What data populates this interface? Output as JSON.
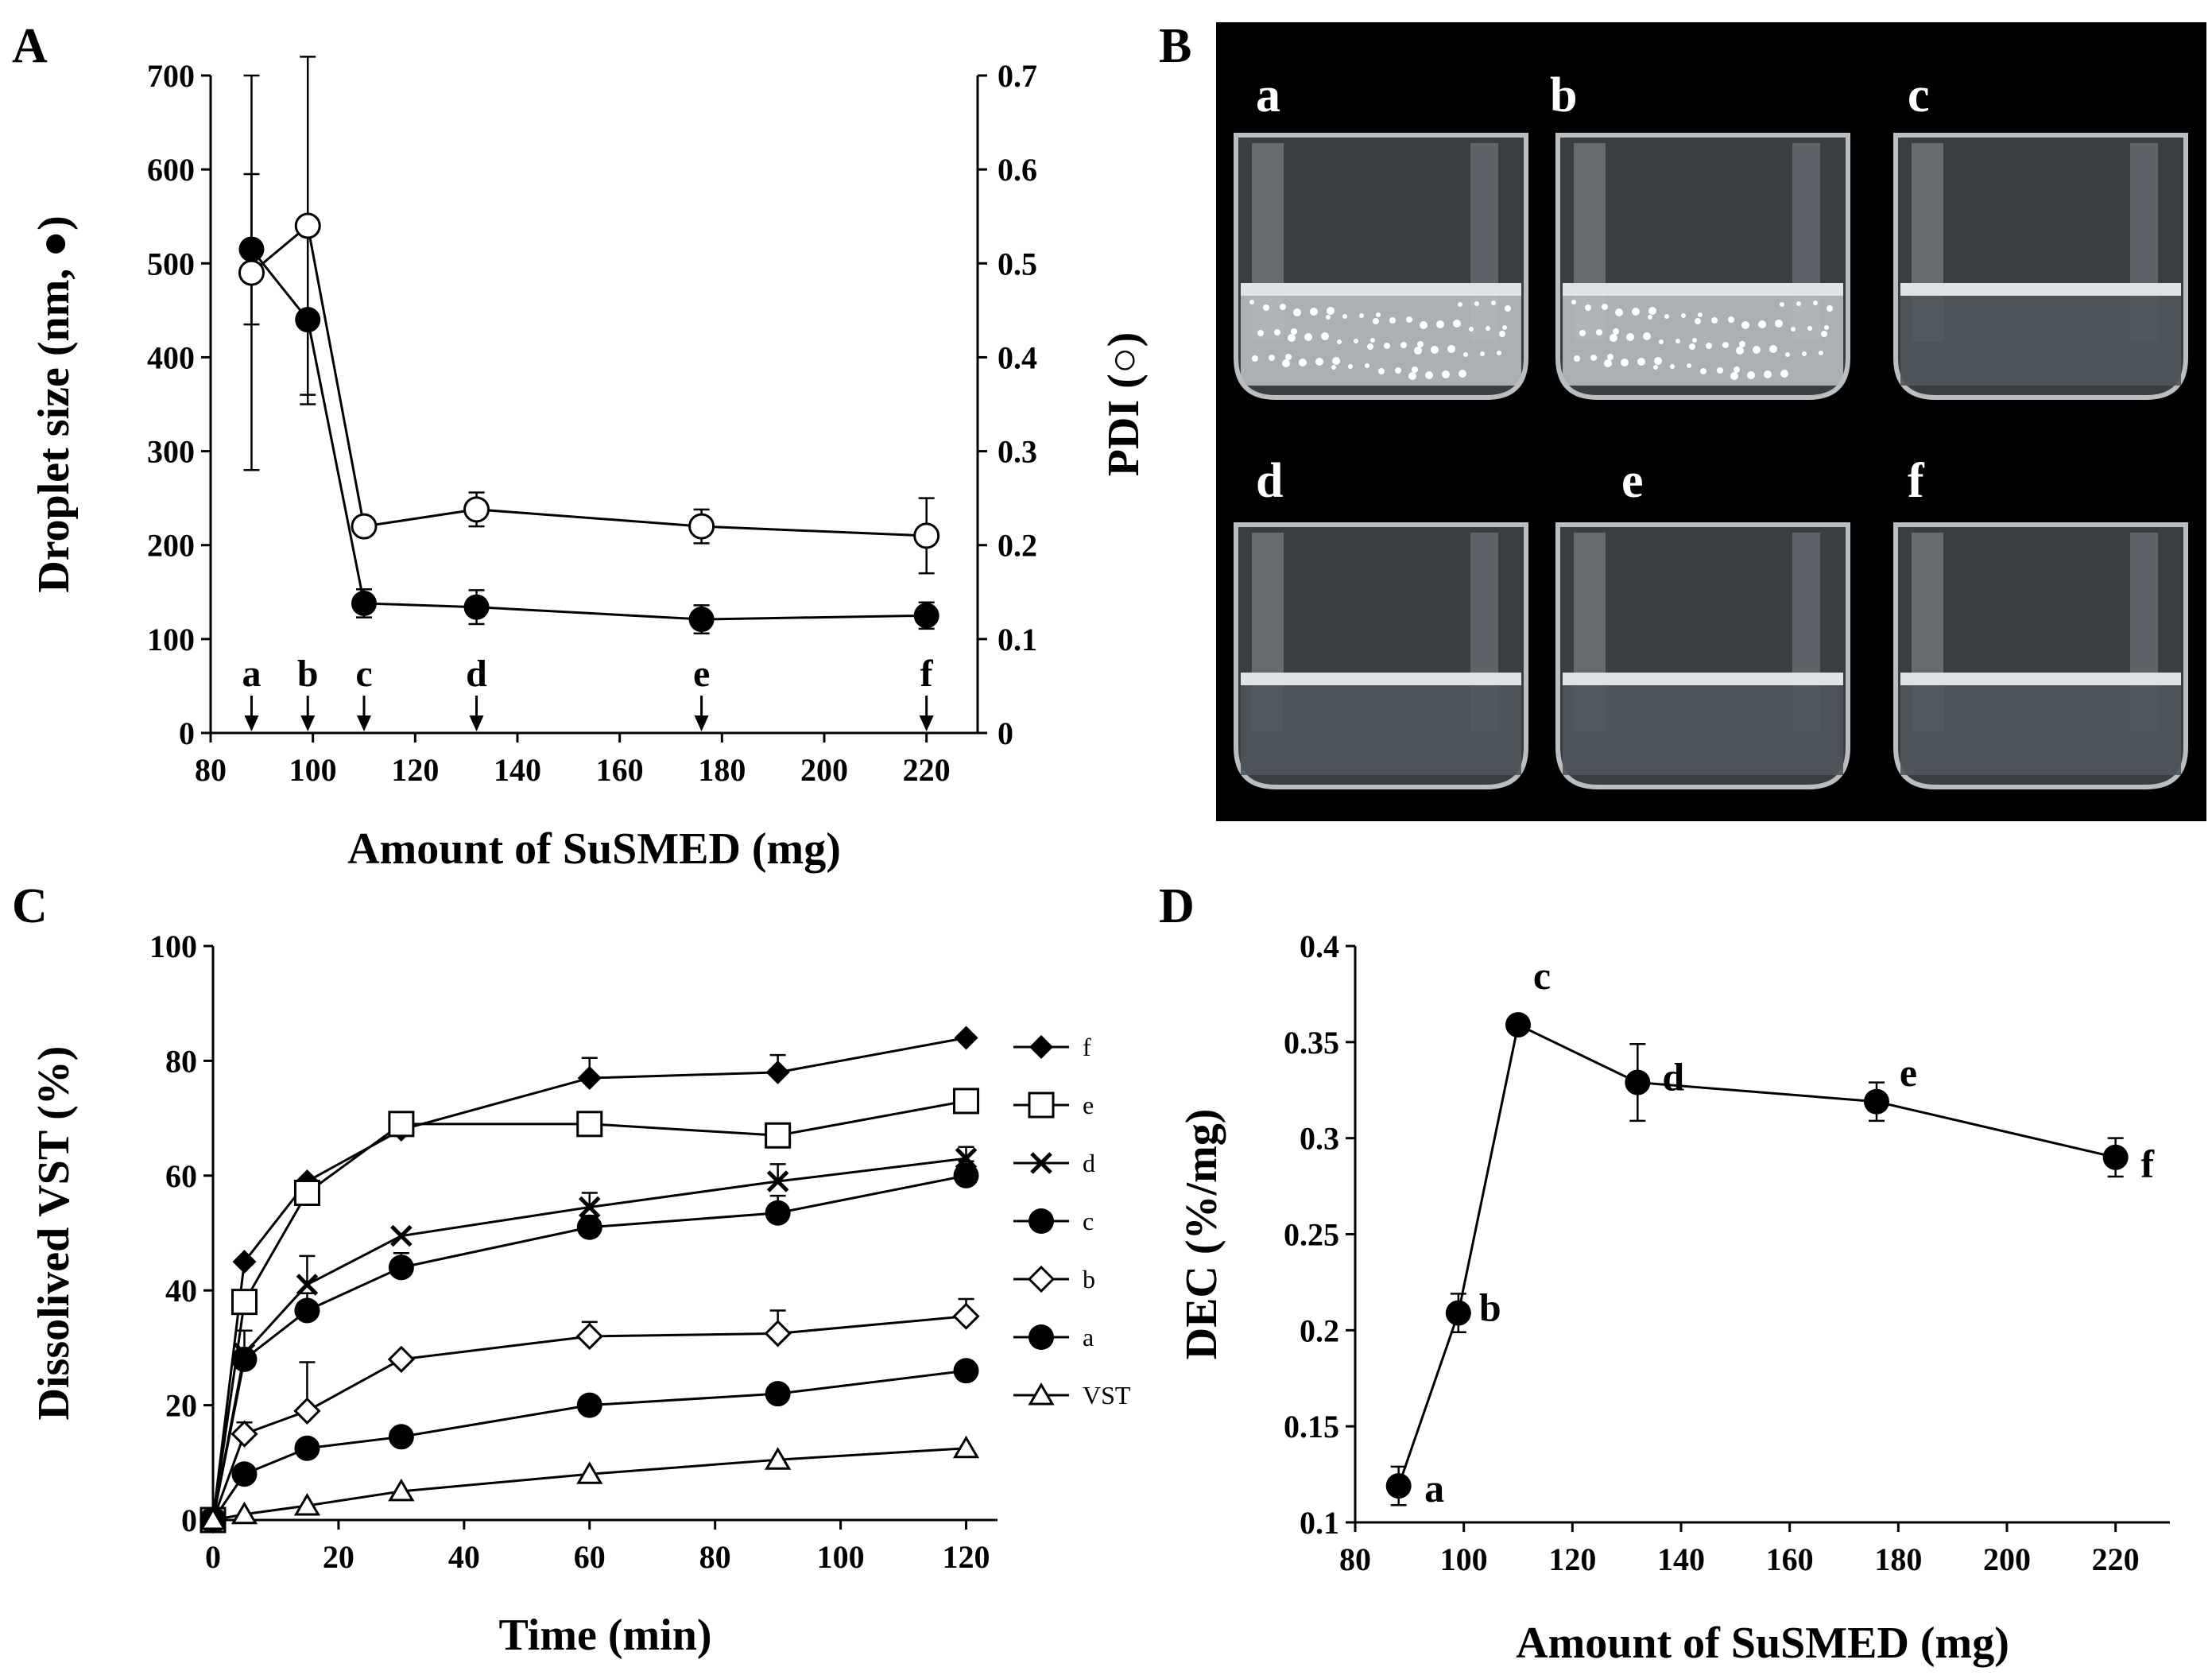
{
  "chart_data": [
    {
      "panel": "A",
      "type": "line",
      "xlabel": "Amount of SuSMED (mg)",
      "ylabel": "Droplet size (nm, ●)",
      "y2label": "PDI (○)",
      "xlim": [
        80,
        230
      ],
      "ylim": [
        0,
        700
      ],
      "y2lim": [
        0,
        0.7
      ],
      "xticks": [
        "80",
        "100",
        "120",
        "140",
        "160",
        "180",
        "200",
        "220"
      ],
      "yticks": [
        "0",
        "100",
        "200",
        "300",
        "400",
        "500",
        "600",
        "700"
      ],
      "y2ticks": [
        "0",
        "0.1",
        "0.2",
        "0.3",
        "0.4",
        "0.5",
        "0.6",
        "0.7"
      ],
      "series": [
        {
          "name": "Droplet size",
          "marker": "filled-circle",
          "axis": "left",
          "x": [
            88,
            99,
            110,
            132,
            176,
            220
          ],
          "values": [
            515,
            440,
            138,
            134,
            121,
            125
          ],
          "errors": [
            80,
            90,
            15,
            18,
            15,
            14
          ]
        },
        {
          "name": "PDI",
          "marker": "open-circle",
          "axis": "right",
          "x": [
            88,
            99,
            110,
            132,
            176,
            220
          ],
          "values": [
            0.49,
            0.54,
            0.22,
            0.238,
            0.22,
            0.21
          ],
          "errors": [
            0.21,
            0.18,
            0.005,
            0.018,
            0.018,
            0.04
          ]
        }
      ],
      "annotations": [
        {
          "label": "a",
          "x": 88
        },
        {
          "label": "b",
          "x": 99
        },
        {
          "label": "c",
          "x": 110
        },
        {
          "label": "d",
          "x": 132
        },
        {
          "label": "e",
          "x": 176
        },
        {
          "label": "f",
          "x": 220
        }
      ]
    },
    {
      "panel": "C",
      "type": "line",
      "xlabel": "Time (min)",
      "ylabel": "Dissolived VST (%)",
      "xlim": [
        0,
        125
      ],
      "ylim": [
        0,
        100
      ],
      "xticks": [
        "0",
        "20",
        "40",
        "60",
        "80",
        "100",
        "120"
      ],
      "yticks": [
        "0",
        "20",
        "40",
        "60",
        "80",
        "100"
      ],
      "x": [
        0,
        5,
        15,
        30,
        60,
        90,
        120
      ],
      "series": [
        {
          "name": "f",
          "marker": "filled-diamond",
          "values": [
            0,
            45,
            59,
            68,
            77,
            78,
            84
          ],
          "errors": [
            0,
            0,
            0,
            0,
            3.5,
            3,
            0
          ]
        },
        {
          "name": "e",
          "marker": "open-square",
          "values": [
            0,
            38,
            57,
            69,
            69,
            67,
            73
          ],
          "errors": [
            0,
            0,
            0,
            0,
            0,
            0,
            0
          ]
        },
        {
          "name": "d",
          "marker": "cross",
          "values": [
            0,
            29,
            41,
            49.5,
            54.5,
            59,
            63
          ],
          "errors": [
            0,
            0,
            5,
            0,
            2.5,
            3,
            2
          ]
        },
        {
          "name": "c",
          "marker": "filled-circle",
          "values": [
            0,
            28,
            36.5,
            44,
            51,
            53.5,
            60
          ],
          "errors": [
            0,
            5,
            3,
            2.5,
            2,
            3,
            2.5
          ]
        },
        {
          "name": "b",
          "marker": "open-diamond",
          "values": [
            0,
            15,
            19,
            28,
            32,
            32.5,
            35.5
          ],
          "errors": [
            0,
            2,
            8.5,
            0,
            2.5,
            4,
            3
          ]
        },
        {
          "name": "a",
          "marker": "filled-circle",
          "values": [
            0,
            8,
            12.5,
            14.5,
            20,
            22,
            26
          ],
          "errors": [
            0,
            0,
            0,
            0,
            0,
            0,
            0
          ]
        },
        {
          "name": "VST",
          "marker": "open-triangle",
          "values": [
            0,
            1,
            2.5,
            5,
            8,
            10.5,
            12.5
          ],
          "errors": [
            0,
            0,
            0,
            0,
            0,
            0,
            0
          ]
        }
      ]
    },
    {
      "panel": "D",
      "type": "line",
      "xlabel": "Amount of SuSMED (mg)",
      "ylabel": "DEC (%/mg)",
      "xlim": [
        80,
        230
      ],
      "ylim": [
        0.1,
        0.4
      ],
      "xticks": [
        "80",
        "100",
        "120",
        "140",
        "160",
        "180",
        "200",
        "220"
      ],
      "yticks": [
        "0.1",
        "0.15",
        "0.2",
        "0.25",
        "0.3",
        "0.35",
        "0.4"
      ],
      "series": [
        {
          "name": "DEC",
          "marker": "filled-circle",
          "x": [
            88,
            99,
            110,
            132,
            176,
            220
          ],
          "values": [
            0.119,
            0.209,
            0.359,
            0.329,
            0.319,
            0.29
          ],
          "errors": [
            0.01,
            0.01,
            0,
            0.02,
            0.01,
            0.01
          ],
          "labels": [
            "a",
            "b",
            "c",
            "d",
            "e",
            "f"
          ]
        }
      ]
    }
  ],
  "panels": {
    "A": "A",
    "B": "B",
    "C": "C",
    "D": "D"
  },
  "photos": {
    "labels": [
      "a",
      "b",
      "c",
      "d",
      "e",
      "f"
    ],
    "background": "#000000"
  },
  "colors": {
    "ink": "#000000",
    "background": "#ffffff"
  }
}
